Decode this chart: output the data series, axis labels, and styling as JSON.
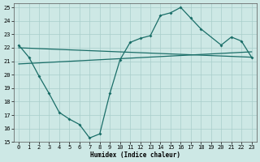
{
  "xlabel": "Humidex (Indice chaleur)",
  "bg_color": "#cde8e5",
  "grid_color": "#a8ceca",
  "line_color": "#1a6e68",
  "xlim": [
    -0.5,
    23.5
  ],
  "ylim": [
    15,
    25.3
  ],
  "xticks": [
    0,
    1,
    2,
    3,
    4,
    5,
    6,
    7,
    8,
    9,
    10,
    11,
    12,
    13,
    14,
    15,
    16,
    17,
    18,
    19,
    20,
    21,
    22,
    23
  ],
  "yticks": [
    15,
    16,
    17,
    18,
    19,
    20,
    21,
    22,
    23,
    24,
    25
  ],
  "line1_x": [
    0,
    1,
    2,
    3,
    4,
    5,
    6,
    7,
    8,
    9,
    10,
    11,
    12,
    13,
    14,
    15,
    16,
    17,
    18,
    20,
    21,
    22,
    23
  ],
  "line1_y": [
    22.2,
    21.3,
    19.9,
    18.6,
    17.2,
    16.7,
    16.3,
    15.3,
    15.6,
    18.6,
    21.1,
    22.4,
    22.7,
    22.9,
    24.4,
    24.6,
    25.0,
    24.2,
    23.4,
    22.2,
    22.8,
    22.5,
    21.3
  ],
  "line2_x": [
    0,
    23
  ],
  "line2_y": [
    22.0,
    21.3
  ],
  "line3_x": [
    0,
    23
  ],
  "line3_y": [
    20.8,
    21.7
  ]
}
